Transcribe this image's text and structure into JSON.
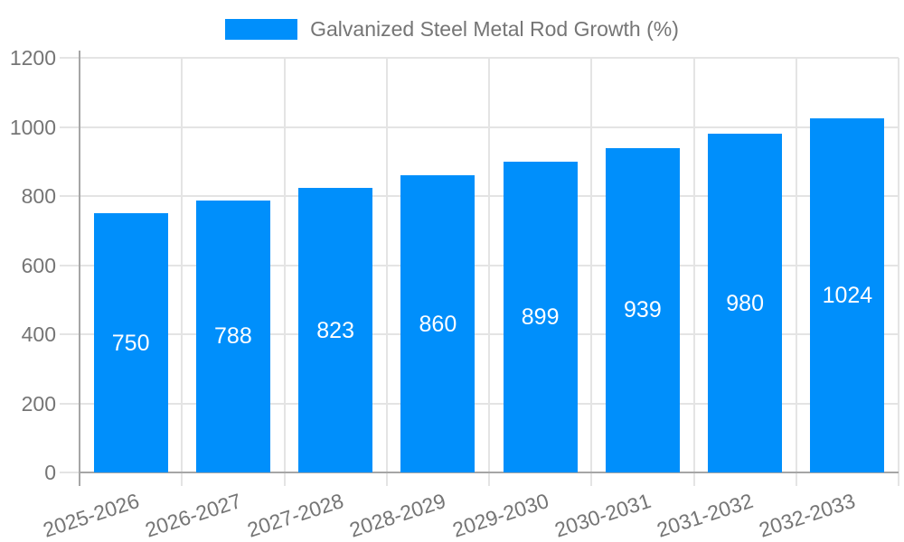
{
  "legend": {
    "label": "Galvanized Steel Metal Rod Growth (%)"
  },
  "chart_data": {
    "type": "bar",
    "title": "Galvanized Steel Metal Rod Growth (%)",
    "categories": [
      "2025-2026",
      "2026-2027",
      "2027-2028",
      "2028-2029",
      "2029-2030",
      "2030-2031",
      "2031-2032",
      "2032-2033"
    ],
    "series": [
      {
        "name": "Galvanized Steel Metal Rod Growth (%)",
        "values": [
          750,
          788,
          823,
          860,
          899,
          939,
          980,
          1024
        ]
      }
    ],
    "xlabel": "",
    "ylabel": "",
    "ylim": [
      0,
      1200
    ],
    "yticks": [
      0,
      200,
      400,
      600,
      800,
      1000,
      1200
    ],
    "grid": true,
    "legend_position": "top",
    "x_label_rotation": -18,
    "colors": {
      "bar": "#008FFB",
      "value_label": "#FFFFFF",
      "axis_text": "#757575",
      "gridline": "#E4E4E4",
      "axis_line": "#A6A6A6",
      "background": "#FFFFFF"
    }
  }
}
